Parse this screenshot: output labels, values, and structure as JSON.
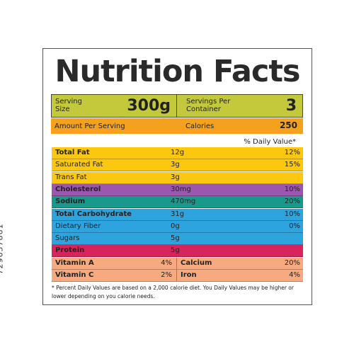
{
  "title": "Nutrition Facts",
  "serving": {
    "label": "Serving Size",
    "value": "300g",
    "color": "#c3c93b"
  },
  "servings": {
    "label": "Servings Per Container",
    "value": "3"
  },
  "amount": {
    "label": "Amount Per Serving",
    "color": "#f4a21d"
  },
  "calories": {
    "label": "Calories",
    "value": "250"
  },
  "daily_value_header": "% Daily Value*",
  "nutrients": [
    {
      "name": "Total Fat",
      "amount": "12g",
      "dv": "12%",
      "color": "#fbc70f",
      "bold": true
    },
    {
      "name": "Saturated Fat",
      "amount": "3g",
      "dv": "15%",
      "color": "#fbc70f"
    },
    {
      "name": "Trans Fat",
      "amount": "3g",
      "color": "#fbc70f"
    },
    {
      "name": "Cholesterol",
      "amount": "30mg",
      "dv": "10%",
      "color": "#9b56b0",
      "bold": true
    },
    {
      "name": "Sodium",
      "amount": "470mg",
      "dv": "20%",
      "color": "#179a8b",
      "bold": true
    },
    {
      "name": "Total Carbohydrate",
      "amount": "31g",
      "dv": "10%",
      "color": "#2ea4de",
      "bold": true
    },
    {
      "name": "Dietary Fiber",
      "amount": "0g",
      "dv": "0%",
      "color": "#2ea4de"
    },
    {
      "name": "Sugars",
      "amount": "5g",
      "color": "#2ea4de"
    },
    {
      "name": "Protein",
      "amount": "5g",
      "color": "#d8245c",
      "bold": true
    }
  ],
  "vitamin_color": "#f7aa7f",
  "vitamins": [
    {
      "left": {
        "name": "Vitamin A",
        "dv": "4%"
      },
      "right": {
        "name": "Calcium",
        "dv": "20%"
      }
    },
    {
      "left": {
        "name": "Vitamin C",
        "dv": "2%"
      },
      "right": {
        "name": "Iron",
        "dv": "4%"
      }
    }
  ],
  "footnote": "* Percent Daily Values are based on a 2,000 calorie diet. You Daily Values may be higher or lower depending on you calorie needs.",
  "stock_id": "729657861"
}
